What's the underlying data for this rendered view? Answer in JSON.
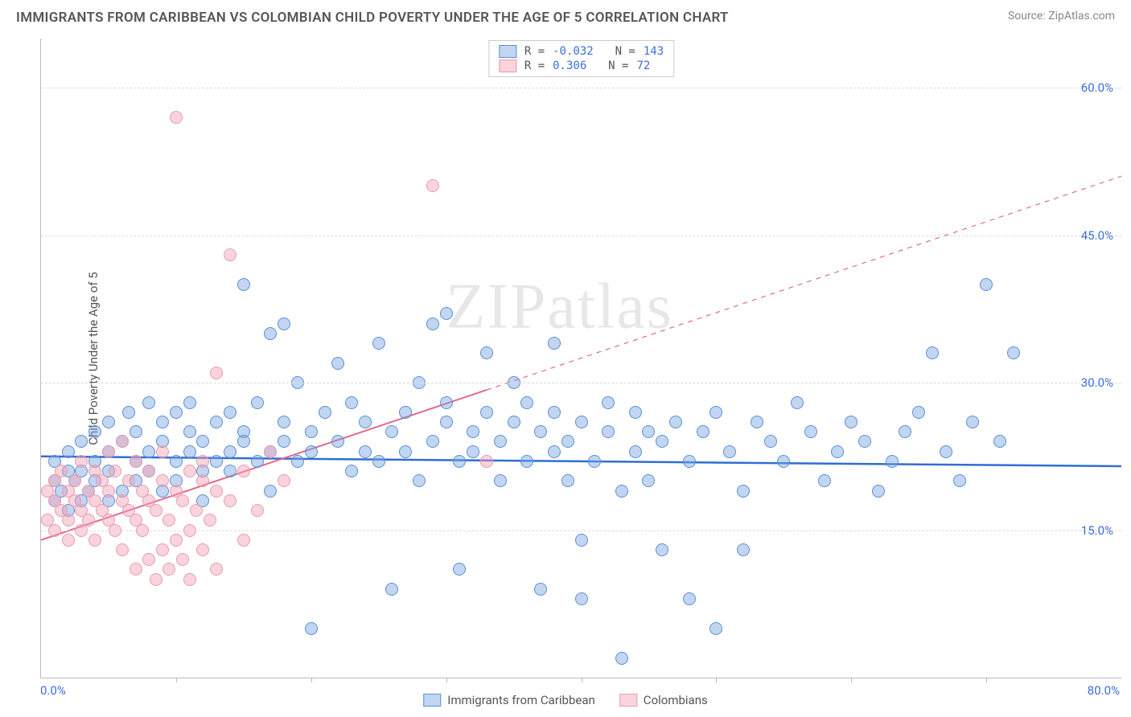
{
  "title": "IMMIGRANTS FROM CARIBBEAN VS COLOMBIAN CHILD POVERTY UNDER THE AGE OF 5 CORRELATION CHART",
  "source_label": "Source:",
  "source_value": "ZipAtlas.com",
  "y_axis_label": "Child Poverty Under the Age of 5",
  "watermark": "ZIPatlas",
  "chart": {
    "type": "scatter",
    "xlim": [
      0,
      80
    ],
    "ylim": [
      0,
      65
    ],
    "x_min_label": "0.0%",
    "x_max_label": "80.0%",
    "y_gridlines": [
      15,
      30,
      45,
      60
    ],
    "y_tick_labels": [
      "15.0%",
      "30.0%",
      "45.0%",
      "60.0%"
    ],
    "x_ticks": [
      10,
      20,
      30,
      40,
      50,
      60,
      70
    ],
    "grid_color": "#dddddd",
    "axis_color": "#bbbbbb",
    "background_color": "#ffffff",
    "tick_label_color": "#3b6fd6"
  },
  "series": [
    {
      "name": "Immigrants from Caribbean",
      "fill": "rgba(120,163,226,0.45)",
      "stroke": "#5b8fd6",
      "trend_color": "#2f6fd0",
      "trend_width": 2.5,
      "R_label": "R =",
      "R": "-0.032",
      "N_label": "N =",
      "N": "143",
      "trend": {
        "x1": 0,
        "y1": 22.5,
        "x2": 80,
        "y2": 21.5,
        "solid_to_x": 80
      },
      "points": [
        [
          1,
          20
        ],
        [
          1,
          18
        ],
        [
          1,
          22
        ],
        [
          1.5,
          19
        ],
        [
          2,
          21
        ],
        [
          2,
          23
        ],
        [
          2,
          17
        ],
        [
          2.5,
          20
        ],
        [
          3,
          24
        ],
        [
          3,
          18
        ],
        [
          3,
          21
        ],
        [
          3.5,
          19
        ],
        [
          4,
          25
        ],
        [
          4,
          22
        ],
        [
          4,
          20
        ],
        [
          5,
          23
        ],
        [
          5,
          26
        ],
        [
          5,
          18
        ],
        [
          5,
          21
        ],
        [
          6,
          19
        ],
        [
          6,
          24
        ],
        [
          6.5,
          27
        ],
        [
          7,
          22
        ],
        [
          7,
          20
        ],
        [
          7,
          25
        ],
        [
          8,
          23
        ],
        [
          8,
          28
        ],
        [
          8,
          21
        ],
        [
          9,
          24
        ],
        [
          9,
          19
        ],
        [
          9,
          26
        ],
        [
          10,
          22
        ],
        [
          10,
          27
        ],
        [
          10,
          20
        ],
        [
          11,
          23
        ],
        [
          11,
          25
        ],
        [
          11,
          28
        ],
        [
          12,
          21
        ],
        [
          12,
          24
        ],
        [
          12,
          18
        ],
        [
          13,
          26
        ],
        [
          13,
          22
        ],
        [
          14,
          23
        ],
        [
          14,
          27
        ],
        [
          14,
          21
        ],
        [
          15,
          25
        ],
        [
          15,
          24
        ],
        [
          15,
          40
        ],
        [
          16,
          22
        ],
        [
          16,
          28
        ],
        [
          17,
          23
        ],
        [
          17,
          35
        ],
        [
          17,
          19
        ],
        [
          18,
          26
        ],
        [
          18,
          24
        ],
        [
          18,
          36
        ],
        [
          19,
          22
        ],
        [
          19,
          30
        ],
        [
          20,
          25
        ],
        [
          20,
          23
        ],
        [
          20,
          5
        ],
        [
          21,
          27
        ],
        [
          22,
          24
        ],
        [
          22,
          32
        ],
        [
          23,
          21
        ],
        [
          23,
          28
        ],
        [
          24,
          26
        ],
        [
          24,
          23
        ],
        [
          25,
          34
        ],
        [
          25,
          22
        ],
        [
          26,
          9
        ],
        [
          26,
          25
        ],
        [
          27,
          27
        ],
        [
          27,
          23
        ],
        [
          28,
          30
        ],
        [
          28,
          20
        ],
        [
          29,
          36
        ],
        [
          29,
          24
        ],
        [
          30,
          26
        ],
        [
          30,
          28
        ],
        [
          30,
          37
        ],
        [
          31,
          22
        ],
        [
          31,
          11
        ],
        [
          32,
          25
        ],
        [
          32,
          23
        ],
        [
          33,
          27
        ],
        [
          33,
          33
        ],
        [
          34,
          24
        ],
        [
          34,
          20
        ],
        [
          35,
          30
        ],
        [
          35,
          26
        ],
        [
          36,
          22
        ],
        [
          36,
          28
        ],
        [
          37,
          25
        ],
        [
          37,
          9
        ],
        [
          38,
          27
        ],
        [
          38,
          23
        ],
        [
          38,
          34
        ],
        [
          39,
          24
        ],
        [
          39,
          20
        ],
        [
          40,
          8
        ],
        [
          40,
          14
        ],
        [
          40,
          26
        ],
        [
          41,
          22
        ],
        [
          42,
          28
        ],
        [
          42,
          25
        ],
        [
          43,
          2
        ],
        [
          43,
          19
        ],
        [
          44,
          27
        ],
        [
          44,
          23
        ],
        [
          45,
          25
        ],
        [
          45,
          20
        ],
        [
          46,
          13
        ],
        [
          46,
          24
        ],
        [
          47,
          26
        ],
        [
          48,
          22
        ],
        [
          48,
          8
        ],
        [
          49,
          25
        ],
        [
          50,
          27
        ],
        [
          50,
          5
        ],
        [
          51,
          23
        ],
        [
          52,
          19
        ],
        [
          52,
          13
        ],
        [
          53,
          26
        ],
        [
          54,
          24
        ],
        [
          55,
          22
        ],
        [
          56,
          28
        ],
        [
          57,
          25
        ],
        [
          58,
          20
        ],
        [
          59,
          23
        ],
        [
          60,
          26
        ],
        [
          61,
          24
        ],
        [
          62,
          19
        ],
        [
          63,
          22
        ],
        [
          64,
          25
        ],
        [
          65,
          27
        ],
        [
          66,
          33
        ],
        [
          67,
          23
        ],
        [
          68,
          20
        ],
        [
          69,
          26
        ],
        [
          70,
          40
        ],
        [
          71,
          24
        ],
        [
          72,
          33
        ]
      ]
    },
    {
      "name": "Colombians",
      "fill": "rgba(244,160,179,0.45)",
      "stroke": "#e89bb0",
      "trend_color": "#e36a8a",
      "trend_width": 2,
      "R_label": "R =",
      "R": "0.306",
      "N_label": "N =",
      "N": "72",
      "trend": {
        "x1": 0,
        "y1": 14,
        "x2": 80,
        "y2": 51,
        "solid_to_x": 33
      },
      "points": [
        [
          0.5,
          16
        ],
        [
          0.5,
          19
        ],
        [
          1,
          18
        ],
        [
          1,
          15
        ],
        [
          1,
          20
        ],
        [
          1.5,
          17
        ],
        [
          1.5,
          21
        ],
        [
          2,
          16
        ],
        [
          2,
          19
        ],
        [
          2,
          14
        ],
        [
          2.5,
          18
        ],
        [
          2.5,
          20
        ],
        [
          3,
          17
        ],
        [
          3,
          22
        ],
        [
          3,
          15
        ],
        [
          3.5,
          19
        ],
        [
          3.5,
          16
        ],
        [
          4,
          21
        ],
        [
          4,
          18
        ],
        [
          4,
          14
        ],
        [
          4.5,
          20
        ],
        [
          4.5,
          17
        ],
        [
          5,
          23
        ],
        [
          5,
          16
        ],
        [
          5,
          19
        ],
        [
          5.5,
          15
        ],
        [
          5.5,
          21
        ],
        [
          6,
          18
        ],
        [
          6,
          13
        ],
        [
          6,
          24
        ],
        [
          6.5,
          17
        ],
        [
          6.5,
          20
        ],
        [
          7,
          16
        ],
        [
          7,
          22
        ],
        [
          7,
          11
        ],
        [
          7.5,
          19
        ],
        [
          7.5,
          15
        ],
        [
          8,
          21
        ],
        [
          8,
          12
        ],
        [
          8,
          18
        ],
        [
          8.5,
          10
        ],
        [
          8.5,
          17
        ],
        [
          9,
          20
        ],
        [
          9,
          13
        ],
        [
          9,
          23
        ],
        [
          9.5,
          16
        ],
        [
          9.5,
          11
        ],
        [
          10,
          19
        ],
        [
          10,
          14
        ],
        [
          10,
          57
        ],
        [
          10.5,
          18
        ],
        [
          10.5,
          12
        ],
        [
          11,
          21
        ],
        [
          11,
          15
        ],
        [
          11,
          10
        ],
        [
          11.5,
          17
        ],
        [
          12,
          20
        ],
        [
          12,
          13
        ],
        [
          12,
          22
        ],
        [
          12.5,
          16
        ],
        [
          13,
          19
        ],
        [
          13,
          11
        ],
        [
          13,
          31
        ],
        [
          14,
          18
        ],
        [
          14,
          43
        ],
        [
          15,
          21
        ],
        [
          15,
          14
        ],
        [
          16,
          17
        ],
        [
          17,
          23
        ],
        [
          18,
          20
        ],
        [
          29,
          50
        ],
        [
          33,
          22
        ]
      ]
    }
  ],
  "legend_bottom": [
    {
      "label": "Immigrants from Caribbean",
      "fill": "rgba(120,163,226,0.45)",
      "stroke": "#5b8fd6"
    },
    {
      "label": "Colombians",
      "fill": "rgba(244,160,179,0.45)",
      "stroke": "#e89bb0"
    }
  ]
}
